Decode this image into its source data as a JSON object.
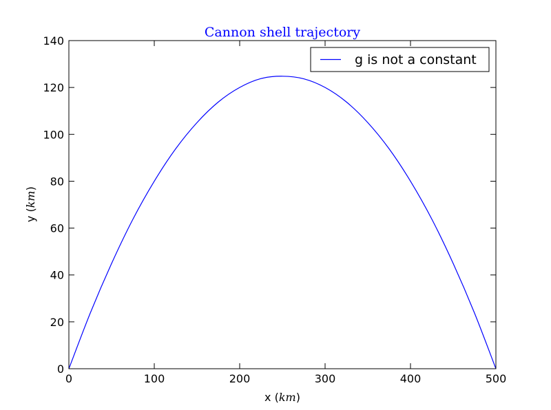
{
  "chart_data": {
    "type": "line",
    "title": "Cannon shell trajectory",
    "title_color": "#0000ff",
    "xlabel": "x (km)",
    "xlabel_text": "x (",
    "xlabel_unit": "km",
    "ylabel": "y (km)",
    "ylabel_text": "y (",
    "ylabel_unit": "km",
    "label_close": ")",
    "xlim": [
      0,
      500
    ],
    "ylim": [
      0,
      140
    ],
    "xticks": [
      0,
      100,
      200,
      300,
      400,
      500
    ],
    "yticks": [
      0,
      20,
      40,
      60,
      80,
      100,
      120,
      140
    ],
    "grid": false,
    "legend_position": "top-right",
    "series": [
      {
        "name": "g is not a constant",
        "color": "#0000ff",
        "x": [
          0,
          25,
          50,
          75,
          100,
          125,
          150,
          175,
          200,
          225,
          250,
          275,
          300,
          325,
          350,
          375,
          400,
          425,
          450,
          475,
          500
        ],
        "y": [
          0,
          23.7,
          44.9,
          63.8,
          80.0,
          93.8,
          105.0,
          113.8,
          120.0,
          123.8,
          124.8,
          123.7,
          120.0,
          113.8,
          105.0,
          93.8,
          80.0,
          63.8,
          44.9,
          23.7,
          0
        ]
      }
    ]
  }
}
